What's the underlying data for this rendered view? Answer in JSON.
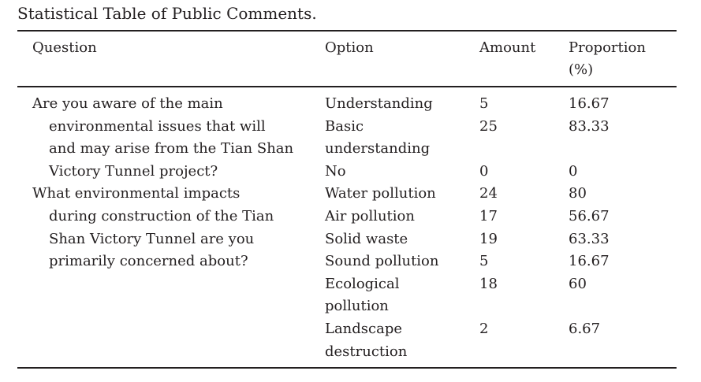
{
  "caption": "Statistical Table of Public Comments.",
  "headers": {
    "question": "Question",
    "option": "Option",
    "amount": "Amount",
    "proportion": "Proportion",
    "proportion_unit": "(%)"
  },
  "groups": [
    {
      "question_lines": [
        "Are you aware of the main",
        "environmental issues that will",
        "and may arise from the Tian Shan",
        "Victory Tunnel project?"
      ],
      "rows": [
        {
          "option": [
            "Understanding"
          ],
          "amount": "5",
          "proportion": "16.67"
        },
        {
          "option": [
            "Basic",
            "understanding"
          ],
          "amount": "25",
          "proportion": "83.33"
        },
        {
          "option": [
            "No"
          ],
          "amount": "0",
          "proportion": "0"
        }
      ]
    },
    {
      "question_lines": [
        "What environmental impacts",
        "during construction of the Tian",
        "Shan Victory Tunnel are you",
        "primarily concerned about?"
      ],
      "rows": [
        {
          "option": [
            "Water pollution"
          ],
          "amount": "24",
          "proportion": "80"
        },
        {
          "option": [
            "Air pollution"
          ],
          "amount": "17",
          "proportion": "56.67"
        },
        {
          "option": [
            "Solid waste"
          ],
          "amount": "19",
          "proportion": "63.33"
        },
        {
          "option": [
            "Sound pollution"
          ],
          "amount": "5",
          "proportion": "16.67"
        },
        {
          "option": [
            "Ecological",
            "pollution"
          ],
          "amount": "18",
          "proportion": "60"
        },
        {
          "option": [
            "Landscape",
            "destruction"
          ],
          "amount": "2",
          "proportion": "6.67"
        }
      ]
    }
  ]
}
